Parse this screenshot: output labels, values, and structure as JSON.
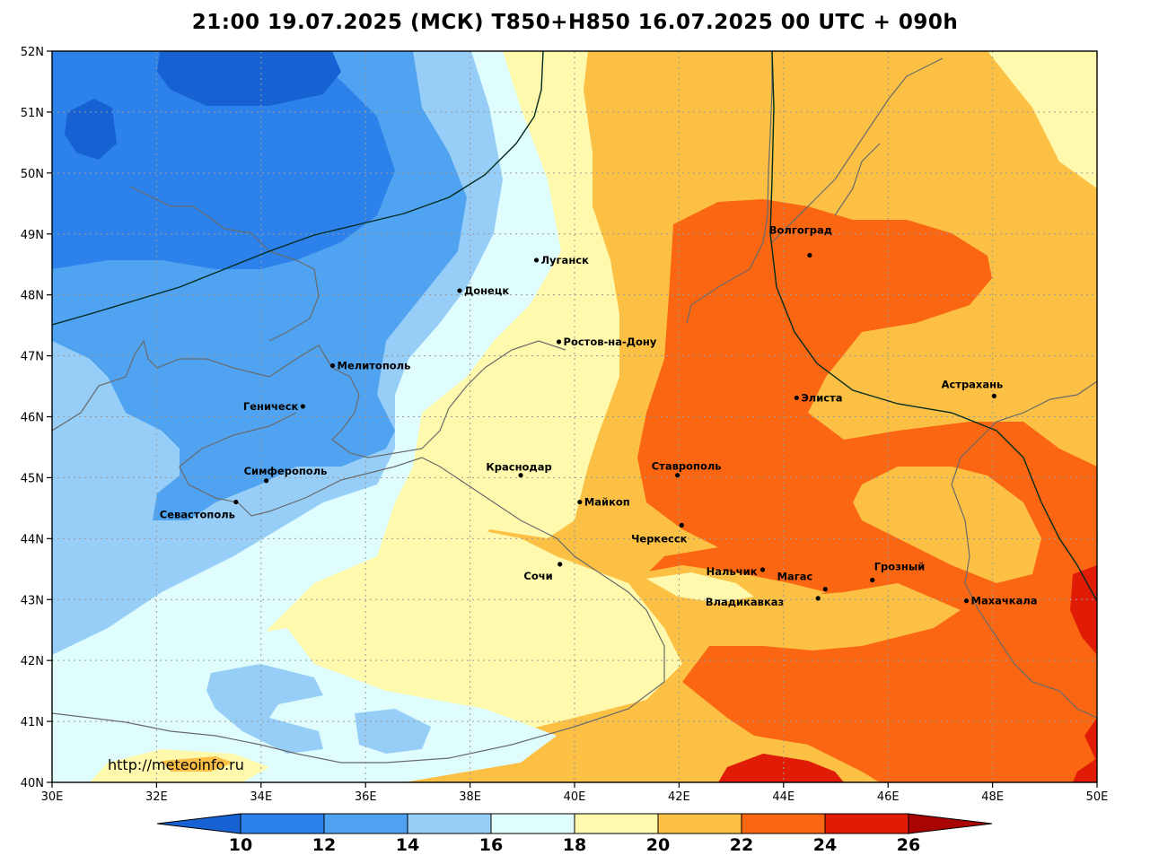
{
  "title": "21:00 19.07.2025 (МСК) T850+H850 16.07.2025 00 UTC + 090h",
  "watermark": "http://meteoinfo.ru",
  "lat_ticks": [
    "52N",
    "51N",
    "50N",
    "49N",
    "48N",
    "47N",
    "46N",
    "45N",
    "44N",
    "43N",
    "42N",
    "41N",
    "40N"
  ],
  "lon_ticks": [
    "30E",
    "32E",
    "34E",
    "36E",
    "38E",
    "40E",
    "42E",
    "44E",
    "46E",
    "48E",
    "50E"
  ],
  "colorbar": {
    "labels": [
      "10",
      "12",
      "14",
      "16",
      "18",
      "20",
      "22",
      "24",
      "26"
    ],
    "colors": [
      "#1762d3",
      "#2c82ea",
      "#50a3f1",
      "#97cef8",
      "#e0fdfe",
      "#fef9ad",
      "#fcc045",
      "#fa6611",
      "#e01b06",
      "#a90302"
    ]
  },
  "cities": [
    {
      "name": "Луганск",
      "lon": 39.27,
      "lat": 48.57
    },
    {
      "name": "Донецк",
      "lon": 37.8,
      "lat": 48.07
    },
    {
      "name": "Волгоград",
      "lon": 44.5,
      "lat": 48.65
    },
    {
      "name": "Ростов-на-Дону",
      "lon": 39.7,
      "lat": 47.23
    },
    {
      "name": "Мелитополь",
      "lon": 35.37,
      "lat": 46.84
    },
    {
      "name": "Геническ",
      "lon": 34.8,
      "lat": 46.17
    },
    {
      "name": "Элиста",
      "lon": 44.25,
      "lat": 46.31
    },
    {
      "name": "Астрахань",
      "lon": 48.03,
      "lat": 46.34
    },
    {
      "name": "Краснодар",
      "lon": 38.97,
      "lat": 45.04
    },
    {
      "name": "Симферополь",
      "lon": 34.1,
      "lat": 44.95
    },
    {
      "name": "Ставрополь",
      "lon": 41.97,
      "lat": 45.04
    },
    {
      "name": "Майкоп",
      "lon": 40.1,
      "lat": 44.6
    },
    {
      "name": "Севастополь",
      "lon": 33.52,
      "lat": 44.6
    },
    {
      "name": "Черкесск",
      "lon": 42.05,
      "lat": 44.22
    },
    {
      "name": "Сочи",
      "lon": 39.72,
      "lat": 43.58
    },
    {
      "name": "Нальчик",
      "lon": 43.6,
      "lat": 43.49
    },
    {
      "name": "Грозный",
      "lon": 45.7,
      "lat": 43.32
    },
    {
      "name": "Магас",
      "lon": 44.8,
      "lat": 43.17
    },
    {
      "name": "Махачкала",
      "lon": 47.5,
      "lat": 42.98
    },
    {
      "name": "Владикавказ",
      "lon": 44.66,
      "lat": 43.02
    }
  ]
}
